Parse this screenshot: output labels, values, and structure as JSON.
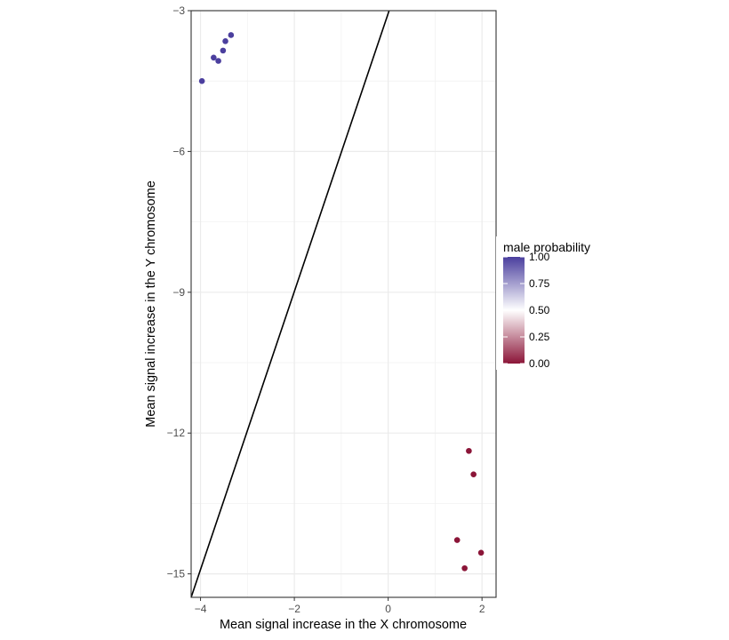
{
  "chart_data": {
    "type": "scatter",
    "title": "",
    "xlabel": "Mean signal increase in the X chromosome",
    "ylabel": "Mean signal increase in the Y chromosome",
    "xlim": [
      -4.2,
      2.3
    ],
    "ylim": [
      -15.5,
      -3.0
    ],
    "xticks": [
      -4,
      -2,
      0,
      2
    ],
    "xtick_labels": [
      "−4",
      "−2",
      "0",
      "2"
    ],
    "yticks": [
      -15,
      -12,
      -9,
      -6,
      -3
    ],
    "ytick_labels": [
      "−15",
      "−12",
      "−9",
      "−6",
      "−3"
    ],
    "grid": true,
    "points": [
      {
        "x": -3.35,
        "y": -3.52,
        "male_probability": 1.0
      },
      {
        "x": -3.47,
        "y": -3.65,
        "male_probability": 1.0
      },
      {
        "x": -3.52,
        "y": -3.85,
        "male_probability": 1.0
      },
      {
        "x": -3.72,
        "y": -4.0,
        "male_probability": 1.0
      },
      {
        "x": -3.62,
        "y": -4.07,
        "male_probability": 1.0
      },
      {
        "x": -3.97,
        "y": -4.5,
        "male_probability": 1.0
      },
      {
        "x": 1.72,
        "y": -12.38,
        "male_probability": 0.0
      },
      {
        "x": 1.82,
        "y": -12.88,
        "male_probability": 0.0
      },
      {
        "x": 1.47,
        "y": -14.28,
        "male_probability": 0.0
      },
      {
        "x": 1.98,
        "y": -14.55,
        "male_probability": 0.0
      },
      {
        "x": 1.63,
        "y": -14.88,
        "male_probability": 0.0
      }
    ],
    "decision_line": {
      "x_start": -4.2,
      "y_start": -15.5,
      "x_end": 0.02,
      "y_end": -3.0
    },
    "legend": {
      "title": "male probability",
      "position": "right",
      "breaks": [
        1.0,
        0.75,
        0.5,
        0.25,
        0.0
      ],
      "labels": [
        "1.00",
        "0.75",
        "0.50",
        "0.25",
        "0.00"
      ],
      "low_color": "#8B1538",
      "mid_color": "#FFFFFF",
      "high_color": "#4B3F9E"
    }
  }
}
